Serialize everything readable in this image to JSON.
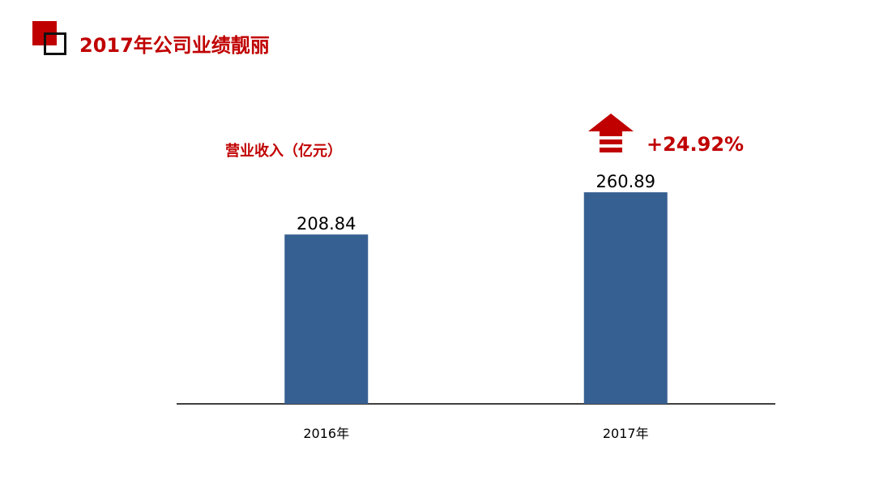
{
  "header": {
    "title": "2017年公司业绩靓丽",
    "logo_icon": "red-square-logo-icon"
  },
  "colors": {
    "accent": "#c00000",
    "bar": "#376092",
    "axis": "#000000"
  },
  "growth": {
    "label": "+24.92%",
    "icon": "up-arrow-icon"
  },
  "chart_data": {
    "type": "bar",
    "title": "",
    "subtitle": "营业收入（亿元）",
    "categories": [
      "2016年",
      "2017年"
    ],
    "values": [
      208.84,
      260.89
    ],
    "value_labels": [
      "208.84",
      "260.89"
    ],
    "xlabel": "",
    "ylabel": "",
    "ylim": [
      0,
      300
    ],
    "grid": false,
    "legend": "none"
  }
}
